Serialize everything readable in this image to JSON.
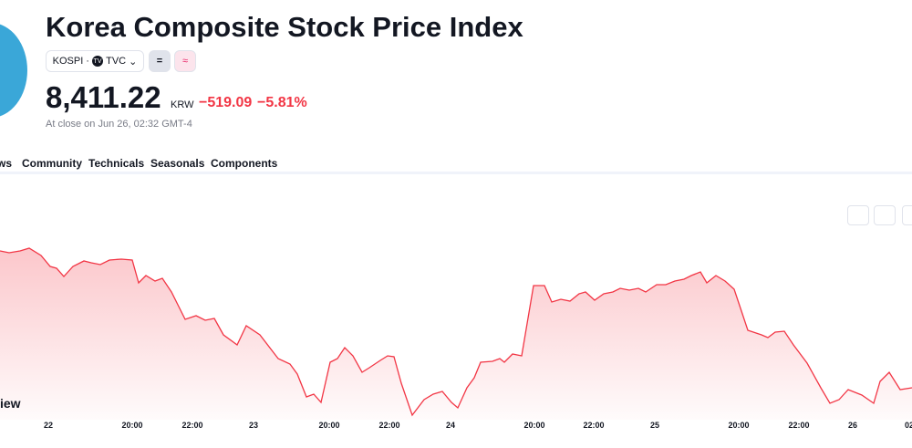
{
  "header": {
    "title": "Korea Composite Stock Price Index",
    "symbol": "KOSPI",
    "exchange": "TVC",
    "price": "8,411.22",
    "currency": "KRW",
    "change": "−519.09",
    "change_pct": "−5.81%",
    "status": "At close on Jun 26, 02:32 GMT-4"
  },
  "tabs": [
    "ws",
    "Community",
    "Technicals",
    "Seasonals",
    "Components"
  ],
  "watermark": "iew",
  "chart": {
    "type": "line",
    "color": "#f23645",
    "x": [
      0,
      10,
      22,
      32,
      45,
      55,
      62,
      70,
      80,
      92,
      100,
      110,
      120,
      133,
      145,
      152,
      160,
      170,
      178,
      188,
      203,
      215,
      225,
      235,
      245,
      260,
      270,
      285,
      305,
      318,
      326,
      336,
      344,
      352,
      362,
      370,
      378,
      387,
      397,
      405,
      417,
      425,
      432,
      440,
      452,
      465,
      475,
      485,
      495,
      502,
      512,
      520,
      527,
      540,
      548,
      553,
      562,
      572,
      585,
      597,
      605,
      615,
      625,
      635,
      642,
      652,
      662,
      672,
      680,
      690,
      700,
      708,
      720,
      730,
      740,
      750,
      758,
      768,
      775,
      785,
      795,
      805,
      820,
      835,
      842,
      850,
      860,
      870,
      885,
      900,
      910,
      920,
      930,
      945,
      958,
      965,
      975,
      987,
      1000
    ],
    "values": [
      9161,
      9151,
      9161,
      9176,
      9136,
      9076,
      9066,
      9021,
      9076,
      9106,
      9096,
      9086,
      9111,
      9116,
      9111,
      8986,
      9026,
      8996,
      9011,
      8936,
      8786,
      8806,
      8781,
      8791,
      8701,
      8646,
      8751,
      8701,
      8571,
      8541,
      8486,
      8361,
      8376,
      8331,
      8551,
      8571,
      8631,
      8586,
      8496,
      8521,
      8561,
      8586,
      8581,
      8436,
      8261,
      8346,
      8376,
      8391,
      8331,
      8301,
      8411,
      8466,
      8551,
      8556,
      8571,
      8551,
      8596,
      8586,
      8971,
      8971,
      8881,
      8896,
      8886,
      8926,
      8936,
      8891,
      8926,
      8936,
      8956,
      8946,
      8956,
      8936,
      8976,
      8976,
      8996,
      9006,
      9026,
      9046,
      8986,
      9026,
      8996,
      8951,
      8726,
      8701,
      8686,
      8716,
      8721,
      8646,
      8546,
      8411,
      8326,
      8346,
      8401,
      8371,
      8326,
      8446,
      8496,
      8401,
      8411
    ],
    "xlim": [
      0,
      1000
    ],
    "ylim": [
      8136,
      9586
    ],
    "xticks": [
      {
        "value": 53,
        "label": "22"
      },
      {
        "value": 145,
        "label": "20:00"
      },
      {
        "value": 211,
        "label": "22:00"
      },
      {
        "value": 278,
        "label": "23"
      },
      {
        "value": 361,
        "label": "20:00"
      },
      {
        "value": 427,
        "label": "22:00"
      },
      {
        "value": 494,
        "label": "24"
      },
      {
        "value": 586,
        "label": "20:00"
      },
      {
        "value": 651,
        "label": "22:00"
      },
      {
        "value": 718,
        "label": "25"
      },
      {
        "value": 810,
        "label": "20:00"
      },
      {
        "value": 876,
        "label": "22:00"
      },
      {
        "value": 935,
        "label": "26"
      },
      {
        "value": 997,
        "label": "02"
      }
    ]
  }
}
